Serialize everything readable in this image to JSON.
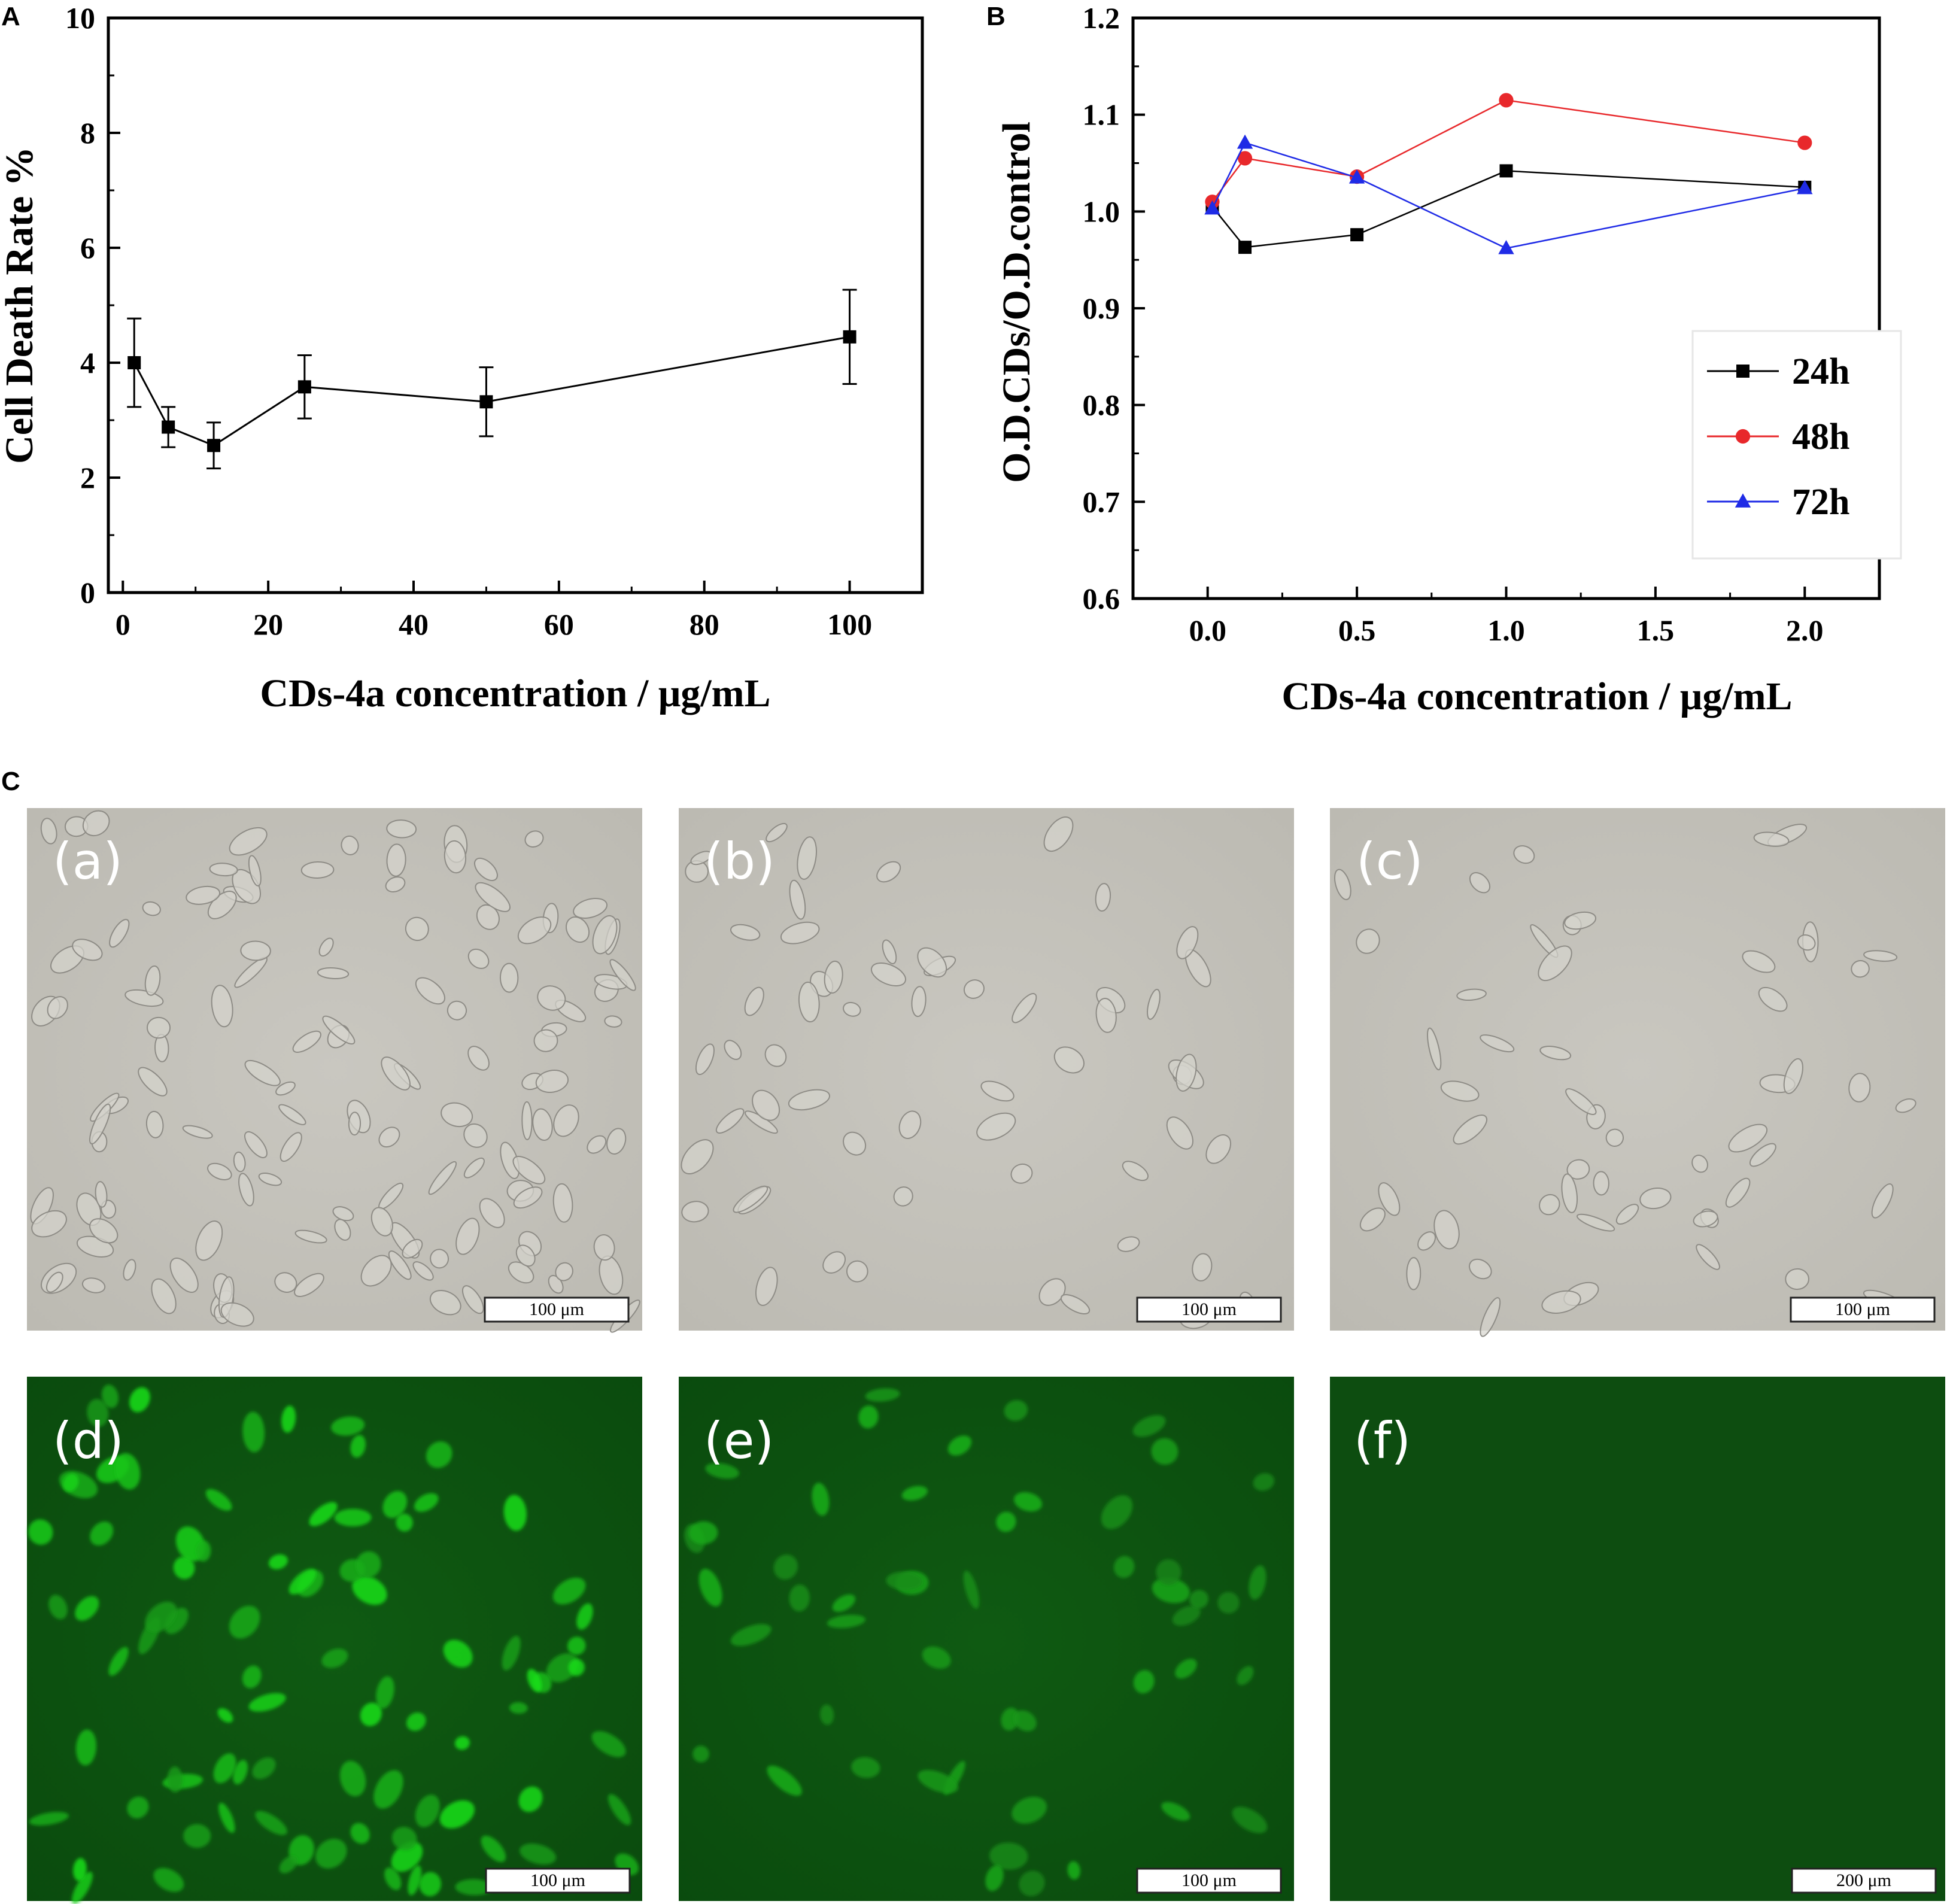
{
  "figure": {
    "panels": {
      "A": "A",
      "B": "B",
      "C": "C"
    },
    "micrographs": [
      {
        "label": "(a)",
        "type": "brightfield",
        "scale_bar": "100 μm"
      },
      {
        "label": "(b)",
        "type": "brightfield",
        "scale_bar": "100 μm"
      },
      {
        "label": "(c)",
        "type": "brightfield",
        "scale_bar": "100 μm"
      },
      {
        "label": "(d)",
        "type": "fluorescence",
        "scale_bar": "100 μm"
      },
      {
        "label": "(e)",
        "type": "fluorescence",
        "scale_bar": "100 μm"
      },
      {
        "label": "(f)",
        "type": "fluorescence",
        "scale_bar": "200 μm"
      }
    ]
  },
  "chart_data": [
    {
      "panel": "A",
      "type": "line",
      "xlabel": "CDs-4a concentration / μg/mL",
      "ylabel": "Cell Death Rate %",
      "xlim": [
        -2,
        110
      ],
      "ylim": [
        0,
        10
      ],
      "xticks": [
        0,
        20,
        40,
        60,
        80,
        100
      ],
      "yticks": [
        0,
        2,
        4,
        6,
        8,
        10
      ],
      "grid": false,
      "series": [
        {
          "marker": "square",
          "color": "#000000",
          "x": [
            1.56,
            6.25,
            12.5,
            25,
            50,
            100
          ],
          "y": [
            4.0,
            2.88,
            2.56,
            3.58,
            3.32,
            4.45
          ],
          "error": [
            0.77,
            0.35,
            0.4,
            0.55,
            0.6,
            0.82
          ]
        }
      ]
    },
    {
      "panel": "B",
      "type": "line",
      "xlabel": "CDs-4a concentration / μg/mL",
      "ylabel": "O.D.CDs/O.D.control",
      "xlim": [
        -0.25,
        2.25
      ],
      "ylim": [
        0.6,
        1.2
      ],
      "xticks": [
        0.0,
        0.5,
        1.0,
        1.5,
        2.0
      ],
      "xtick_labels": [
        "0.0",
        "0.5",
        "1.0",
        "1.5",
        "2.0"
      ],
      "yticks": [
        0.6,
        0.7,
        0.8,
        0.9,
        1.0,
        1.1,
        1.2
      ],
      "ytick_labels": [
        "0.6",
        "0.7",
        "0.8",
        "0.9",
        "1.0",
        "1.1",
        "1.2"
      ],
      "grid": false,
      "legend_position": "bottom-right",
      "series": [
        {
          "name": "24h",
          "marker": "square",
          "color": "#000000",
          "x": [
            0.0156,
            0.125,
            0.5,
            1.0,
            2.0
          ],
          "y": [
            1.005,
            0.963,
            0.976,
            1.042,
            1.025
          ]
        },
        {
          "name": "48h",
          "marker": "circle",
          "color": "#e8282b",
          "x": [
            0.0156,
            0.125,
            0.5,
            1.0,
            2.0
          ],
          "y": [
            1.01,
            1.055,
            1.036,
            1.115,
            1.071
          ]
        },
        {
          "name": "72h",
          "marker": "triangle",
          "color": "#1f2be6",
          "x": [
            0.0156,
            0.125,
            0.5,
            1.0,
            2.0
          ],
          "y": [
            1.003,
            1.071,
            1.035,
            0.962,
            1.024
          ]
        }
      ]
    }
  ]
}
